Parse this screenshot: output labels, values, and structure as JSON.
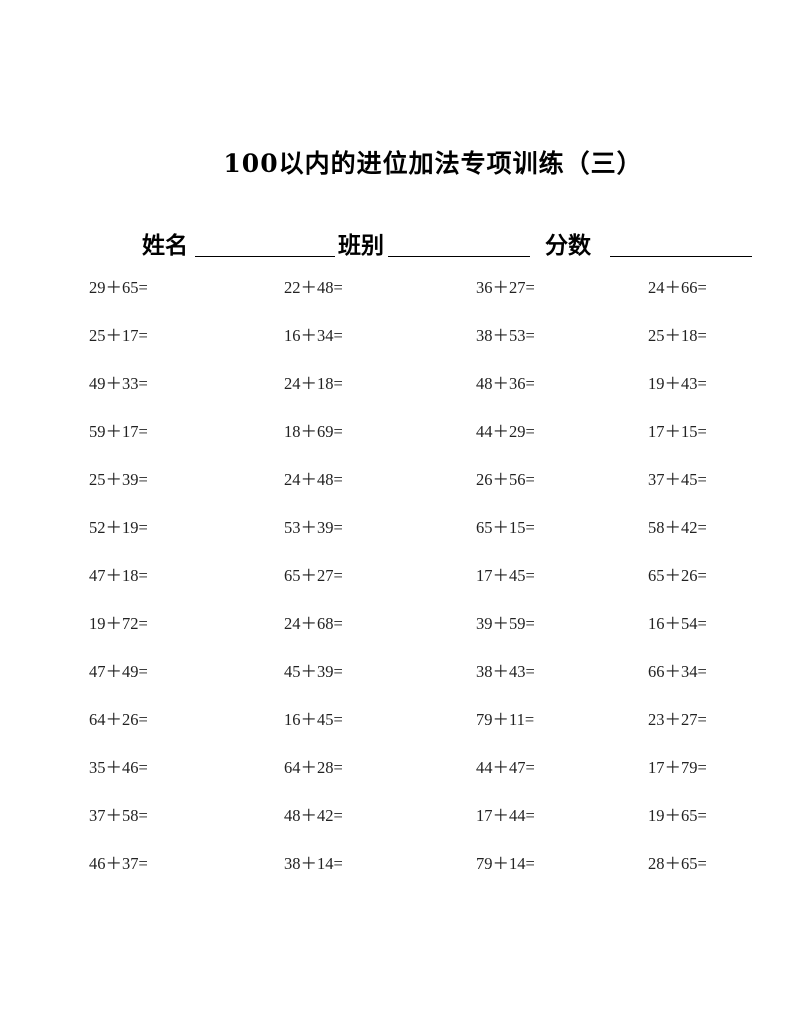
{
  "title": "100以内的进位加法专项训练（三）",
  "fields": {
    "name_label": "姓名",
    "class_label": "班别",
    "score_label": "分数"
  },
  "problems": [
    [
      "29＋65=",
      "22＋48=",
      "36＋27=",
      "24＋66="
    ],
    [
      "25＋17=",
      "16＋34=",
      "38＋53=",
      "25＋18="
    ],
    [
      "49＋33=",
      "24＋18=",
      "48＋36=",
      "19＋43="
    ],
    [
      "59＋17=",
      "18＋69=",
      "44＋29=",
      "17＋15="
    ],
    [
      "25＋39=",
      "24＋48=",
      "26＋56=",
      "37＋45="
    ],
    [
      "52＋19=",
      "53＋39=",
      "65＋15=",
      "58＋42="
    ],
    [
      "47＋18=",
      "65＋27=",
      "17＋45=",
      "65＋26="
    ],
    [
      "19＋72=",
      "24＋68=",
      "39＋59=",
      "16＋54="
    ],
    [
      "47＋49=",
      "45＋39=",
      "38＋43=",
      "66＋34="
    ],
    [
      "64＋26=",
      "16＋45=",
      "79＋11=",
      "23＋27="
    ],
    [
      "35＋46=",
      "64＋28=",
      "44＋47=",
      "17＋79="
    ],
    [
      "37＋58=",
      "48＋42=",
      "17＋44=",
      "19＋65="
    ],
    [
      "46＋37=",
      "38＋14=",
      "79＋14=",
      "28＋65="
    ]
  ]
}
